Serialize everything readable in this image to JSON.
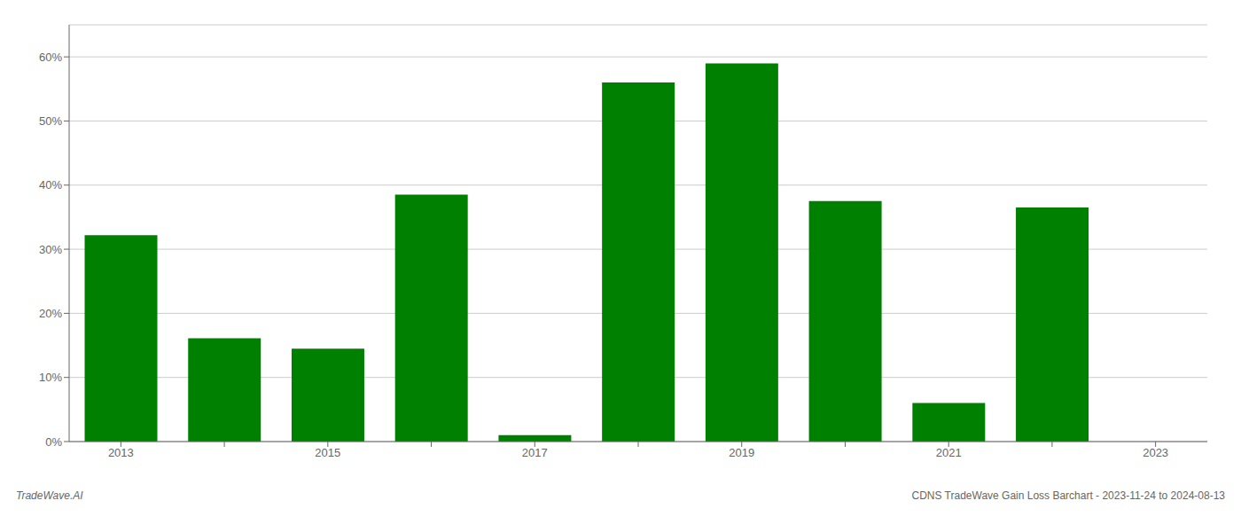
{
  "chart_data": {
    "type": "bar",
    "categories": [
      "2013",
      null,
      "2015",
      null,
      "2017",
      null,
      "2019",
      null,
      "2021",
      null,
      "2023"
    ],
    "values": [
      0.322,
      0.161,
      0.145,
      0.385,
      0.01,
      0.56,
      0.59,
      0.375,
      0.06,
      0.365,
      0.0
    ],
    "color": "#008000",
    "ylim": [
      0,
      0.65
    ],
    "yticks": [
      {
        "value": 0.0,
        "label": "0%"
      },
      {
        "value": 0.1,
        "label": "10%"
      },
      {
        "value": 0.2,
        "label": "20%"
      },
      {
        "value": 0.3,
        "label": "30%"
      },
      {
        "value": 0.4,
        "label": "40%"
      },
      {
        "value": 0.5,
        "label": "50%"
      },
      {
        "value": 0.6,
        "label": "60%"
      }
    ],
    "grid": true,
    "annotations": [
      "TradeWave.AI",
      "CDNS TradeWave Gain Loss Barchart - 2023-11-24 to 2024-08-13"
    ]
  }
}
